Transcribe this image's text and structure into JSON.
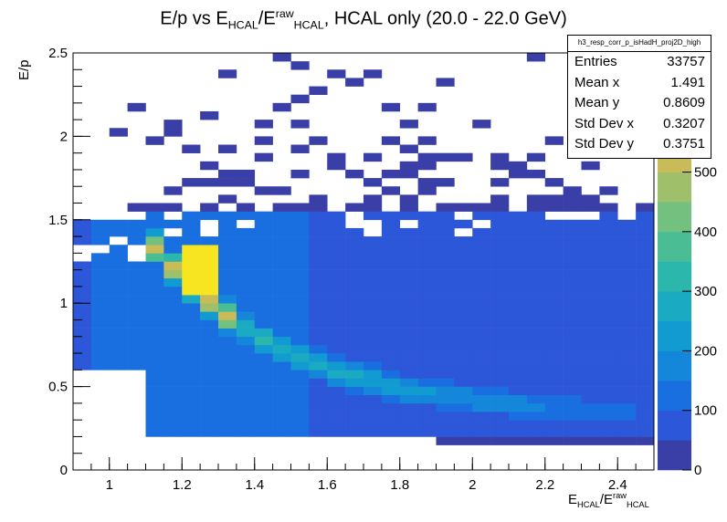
{
  "title": {
    "main": "E/p vs E",
    "sub1": "HCAL",
    "mid": "/E",
    "sup": "raw",
    "sub2": "HCAL",
    "rest": ", HCAL only (20.0 - 22.0 GeV)"
  },
  "stats": {
    "name": "h3_resp_corr_p_isHadH_proj2D_high",
    "rows": [
      {
        "label": "Entries",
        "value": "33757"
      },
      {
        "label": "Mean x",
        "value": "1.491"
      },
      {
        "label": "Mean y",
        "value": "0.8609"
      },
      {
        "label": "Std Dev x",
        "value": "0.3207"
      },
      {
        "label": "Std Dev y",
        "value": "0.3751"
      }
    ]
  },
  "chart_data": {
    "type": "heatmap",
    "xlabel": {
      "main": "E",
      "sub1": "HCAL",
      "mid": "/E",
      "sup": "raw",
      "sub2": "HCAL"
    },
    "ylabel": "E/p",
    "xlim": [
      0.9,
      2.5
    ],
    "ylim": [
      0,
      2.5
    ],
    "zlim": [
      0,
      700
    ],
    "xticks": [
      "1",
      "1.2",
      "1.4",
      "1.6",
      "1.8",
      "2",
      "2.2",
      "2.4"
    ],
    "yticks": [
      "0",
      "0.5",
      "1",
      "1.5",
      "2",
      "2.5"
    ],
    "zticks": [
      "0",
      "100",
      "200",
      "300",
      "400",
      "500",
      "600"
    ],
    "zticks_visible": [
      "0",
      "100",
      "200",
      "300",
      "400",
      "500"
    ],
    "bins_x": 32,
    "bins_y": 50,
    "palette": [
      "#3a3fa8",
      "#2c57d8",
      "#1a6fe0",
      "#1487db",
      "#119bd0",
      "#1aaac1",
      "#2bb7ab",
      "#4abd95",
      "#73c07f",
      "#a0bf6a",
      "#c8bb58",
      "#e8b845",
      "#f5c838",
      "#f7e520"
    ],
    "colors": {
      "low": "#3a3fa8",
      "peak": "#f7e520"
    }
  }
}
